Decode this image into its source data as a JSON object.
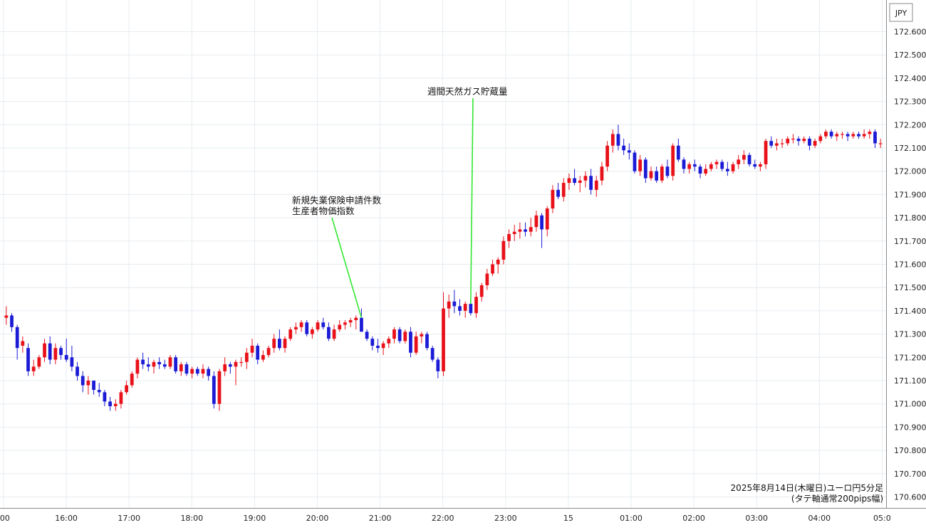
{
  "chart_data": {
    "type": "candlestick",
    "currency_label": "JPY",
    "y_ticks": [
      "172.600",
      "172.500",
      "172.400",
      "172.300",
      "172.200",
      "172.100",
      "172.000",
      "171.900",
      "171.800",
      "171.700",
      "171.600",
      "171.500",
      "171.400",
      "171.300",
      "171.200",
      "171.100",
      "171.000",
      "170.900",
      "170.800",
      "170.700",
      "170.600"
    ],
    "ylim": [
      170.57,
      172.66
    ],
    "x_ticks": [
      ":00",
      "16:00",
      "17:00",
      "18:00",
      "19:00",
      "20:00",
      "21:00",
      "22:00",
      "23:00",
      "15",
      "01:00",
      "02:00",
      "03:00",
      "04:00",
      "05:0"
    ],
    "grid": true,
    "colors": {
      "up": "#e8111a",
      "down": "#1b1bd6",
      "grid": "#e6ecf0",
      "annotation_line": "#33e633",
      "axis_line": "#888888"
    },
    "annotations": [
      {
        "lines": [
          "新規失業保険申請件数",
          "生産者物価指数"
        ],
        "at_candle": 65
      },
      {
        "lines": [
          "週間天然ガス貯蔵量"
        ],
        "at_candle": 85
      }
    ],
    "caption": [
      "2025年8月14日(木曜日)ユーロ円5分足",
      "(タテ軸通常200pips幅)"
    ],
    "candles": [
      [
        171.37,
        171.42,
        171.34,
        171.38
      ],
      [
        171.38,
        171.39,
        171.31,
        171.33
      ],
      [
        171.33,
        171.34,
        171.19,
        171.24
      ],
      [
        171.25,
        171.29,
        171.22,
        171.27
      ],
      [
        171.24,
        171.26,
        171.12,
        171.14
      ],
      [
        171.14,
        171.19,
        171.12,
        171.16
      ],
      [
        171.16,
        171.21,
        171.15,
        171.2
      ],
      [
        171.2,
        171.28,
        171.18,
        171.26
      ],
      [
        171.26,
        171.29,
        171.17,
        171.19
      ],
      [
        171.19,
        171.26,
        171.17,
        171.24
      ],
      [
        171.24,
        171.25,
        171.19,
        171.21
      ],
      [
        171.21,
        171.28,
        171.18,
        171.19
      ],
      [
        171.2,
        171.25,
        171.14,
        171.16
      ],
      [
        171.16,
        171.18,
        171.1,
        171.12
      ],
      [
        171.12,
        171.14,
        171.05,
        171.08
      ],
      [
        171.08,
        171.12,
        171.04,
        171.1
      ],
      [
        171.1,
        171.1,
        171.04,
        171.06
      ],
      [
        171.06,
        171.09,
        171.03,
        171.05
      ],
      [
        171.05,
        171.06,
        170.99,
        171.01
      ],
      [
        171.01,
        171.03,
        170.97,
        170.99
      ],
      [
        170.99,
        171.02,
        170.97,
        171.0
      ],
      [
        171.0,
        171.06,
        170.98,
        171.05
      ],
      [
        171.05,
        171.1,
        171.04,
        171.08
      ],
      [
        171.08,
        171.14,
        171.07,
        171.13
      ],
      [
        171.13,
        171.2,
        171.11,
        171.19
      ],
      [
        171.19,
        171.22,
        171.15,
        171.17
      ],
      [
        171.17,
        171.2,
        171.14,
        171.16
      ],
      [
        171.16,
        171.19,
        171.13,
        171.18
      ],
      [
        171.18,
        171.2,
        171.15,
        171.17
      ],
      [
        171.17,
        171.19,
        171.15,
        171.16
      ],
      [
        171.16,
        171.21,
        171.15,
        171.2
      ],
      [
        171.2,
        171.21,
        171.13,
        171.14
      ],
      [
        171.14,
        171.18,
        171.12,
        171.17
      ],
      [
        171.17,
        171.18,
        171.12,
        171.13
      ],
      [
        171.13,
        171.16,
        171.11,
        171.15
      ],
      [
        171.15,
        171.16,
        171.12,
        171.13
      ],
      [
        171.13,
        171.17,
        171.11,
        171.15
      ],
      [
        171.15,
        171.16,
        171.1,
        171.12
      ],
      [
        171.12,
        171.14,
        170.98,
        171.0
      ],
      [
        171.0,
        171.15,
        170.97,
        171.14
      ],
      [
        171.14,
        171.2,
        171.12,
        171.17
      ],
      [
        171.17,
        171.18,
        171.13,
        171.16
      ],
      [
        171.16,
        171.19,
        171.08,
        171.18
      ],
      [
        171.18,
        171.2,
        171.16,
        171.18
      ],
      [
        171.18,
        171.24,
        171.15,
        171.22
      ],
      [
        171.22,
        171.28,
        171.2,
        171.25
      ],
      [
        171.25,
        171.26,
        171.17,
        171.19
      ],
      [
        171.19,
        171.23,
        171.18,
        171.21
      ],
      [
        171.21,
        171.25,
        171.2,
        171.24
      ],
      [
        171.24,
        171.3,
        171.22,
        171.28
      ],
      [
        171.28,
        171.32,
        171.23,
        171.24
      ],
      [
        171.24,
        171.29,
        171.22,
        171.28
      ],
      [
        171.28,
        171.33,
        171.27,
        171.32
      ],
      [
        171.32,
        171.35,
        171.3,
        171.33
      ],
      [
        171.33,
        171.36,
        171.31,
        171.35
      ],
      [
        171.35,
        171.36,
        171.29,
        171.3
      ],
      [
        171.3,
        171.33,
        171.28,
        171.32
      ],
      [
        171.32,
        171.36,
        171.31,
        171.35
      ],
      [
        171.35,
        171.37,
        171.32,
        171.33
      ],
      [
        171.33,
        171.35,
        171.27,
        171.28
      ],
      [
        171.28,
        171.34,
        171.27,
        171.32
      ],
      [
        171.32,
        171.36,
        171.31,
        171.34
      ],
      [
        171.34,
        171.36,
        171.32,
        171.35
      ],
      [
        171.35,
        171.37,
        171.33,
        171.36
      ],
      [
        171.36,
        171.38,
        171.32,
        171.37
      ],
      [
        171.37,
        171.41,
        171.33,
        171.31
      ],
      [
        171.31,
        171.32,
        171.27,
        171.28
      ],
      [
        171.28,
        171.29,
        171.23,
        171.25
      ],
      [
        171.25,
        171.28,
        171.22,
        171.24
      ],
      [
        171.24,
        171.27,
        171.21,
        171.26
      ],
      [
        171.26,
        171.29,
        171.24,
        171.28
      ],
      [
        171.28,
        171.33,
        171.26,
        171.32
      ],
      [
        171.32,
        171.33,
        171.26,
        171.27
      ],
      [
        171.27,
        171.32,
        171.26,
        171.31
      ],
      [
        171.31,
        171.33,
        171.2,
        171.22
      ],
      [
        171.22,
        171.31,
        171.21,
        171.29
      ],
      [
        171.29,
        171.31,
        171.26,
        171.3
      ],
      [
        171.3,
        171.31,
        171.23,
        171.24
      ],
      [
        171.24,
        171.25,
        171.18,
        171.19
      ],
      [
        171.19,
        171.2,
        171.11,
        171.14
      ],
      [
        171.14,
        171.48,
        171.12,
        171.41
      ],
      [
        171.41,
        171.47,
        171.37,
        171.44
      ],
      [
        171.44,
        171.49,
        171.39,
        171.42
      ],
      [
        171.42,
        171.45,
        171.38,
        171.4
      ],
      [
        171.4,
        171.44,
        171.37,
        171.43
      ],
      [
        171.43,
        171.45,
        171.38,
        171.39
      ],
      [
        171.39,
        171.48,
        171.37,
        171.46
      ],
      [
        171.46,
        171.52,
        171.44,
        171.51
      ],
      [
        171.51,
        171.58,
        171.49,
        171.56
      ],
      [
        171.56,
        171.62,
        171.55,
        171.6
      ],
      [
        171.6,
        171.63,
        171.56,
        171.62
      ],
      [
        171.62,
        171.72,
        171.6,
        171.7
      ],
      [
        171.7,
        171.75,
        171.67,
        171.73
      ],
      [
        171.73,
        171.77,
        171.7,
        171.74
      ],
      [
        171.74,
        171.78,
        171.71,
        171.75
      ],
      [
        171.75,
        171.78,
        171.72,
        171.74
      ],
      [
        171.74,
        171.8,
        171.72,
        171.76
      ],
      [
        171.76,
        171.83,
        171.74,
        171.81
      ],
      [
        171.81,
        171.82,
        171.67,
        171.75
      ],
      [
        171.75,
        171.85,
        171.72,
        171.84
      ],
      [
        171.84,
        171.94,
        171.82,
        171.92
      ],
      [
        171.92,
        171.95,
        171.88,
        171.89
      ],
      [
        171.89,
        171.97,
        171.87,
        171.95
      ],
      [
        171.95,
        171.99,
        171.92,
        171.97
      ],
      [
        171.97,
        172.01,
        171.94,
        171.95
      ],
      [
        171.95,
        171.98,
        171.91,
        171.96
      ],
      [
        171.96,
        172.0,
        171.93,
        171.98
      ],
      [
        171.98,
        172.01,
        171.9,
        171.92
      ],
      [
        171.92,
        171.98,
        171.89,
        171.96
      ],
      [
        171.96,
        172.04,
        171.94,
        172.02
      ],
      [
        172.02,
        172.13,
        172.0,
        172.11
      ],
      [
        172.11,
        172.18,
        172.08,
        172.16
      ],
      [
        172.16,
        172.2,
        172.09,
        172.11
      ],
      [
        172.11,
        172.14,
        172.07,
        172.09
      ],
      [
        172.09,
        172.12,
        172.05,
        172.08
      ],
      [
        172.08,
        172.09,
        171.99,
        172.0
      ],
      [
        172.0,
        172.07,
        171.98,
        172.05
      ],
      [
        172.05,
        172.06,
        171.95,
        171.97
      ],
      [
        171.97,
        172.02,
        171.96,
        172.0
      ],
      [
        172.0,
        172.02,
        171.95,
        171.96
      ],
      [
        171.96,
        172.03,
        171.95,
        172.02
      ],
      [
        172.02,
        172.05,
        171.97,
        171.98
      ],
      [
        171.98,
        172.12,
        171.96,
        172.11
      ],
      [
        172.11,
        172.14,
        172.04,
        172.05
      ],
      [
        172.05,
        172.06,
        171.99,
        172.01
      ],
      [
        172.01,
        172.04,
        171.99,
        172.03
      ],
      [
        172.03,
        172.05,
        172.0,
        172.02
      ],
      [
        172.02,
        172.03,
        171.97,
        171.99
      ],
      [
        171.99,
        172.03,
        171.98,
        172.01
      ],
      [
        172.01,
        172.04,
        172.0,
        172.03
      ],
      [
        172.03,
        172.05,
        172.01,
        172.04
      ],
      [
        172.04,
        172.05,
        172.0,
        172.01
      ],
      [
        172.01,
        172.04,
        171.98,
        172.0
      ],
      [
        172.0,
        172.04,
        171.99,
        172.03
      ],
      [
        172.03,
        172.07,
        172.01,
        172.05
      ],
      [
        172.05,
        172.09,
        172.03,
        172.07
      ],
      [
        172.07,
        172.08,
        172.02,
        172.03
      ],
      [
        172.03,
        172.05,
        172.01,
        172.02
      ],
      [
        172.02,
        172.04,
        172.0,
        172.03
      ],
      [
        172.03,
        172.14,
        172.01,
        172.13
      ],
      [
        172.13,
        172.15,
        172.1,
        172.11
      ],
      [
        172.11,
        172.14,
        172.09,
        172.12
      ],
      [
        172.12,
        172.14,
        172.1,
        172.12
      ],
      [
        172.12,
        172.15,
        172.11,
        172.14
      ],
      [
        172.14,
        172.16,
        172.12,
        172.14
      ],
      [
        172.14,
        172.15,
        172.11,
        172.13
      ],
      [
        172.13,
        172.15,
        172.12,
        172.14
      ],
      [
        172.14,
        172.15,
        172.09,
        172.11
      ],
      [
        172.11,
        172.14,
        172.1,
        172.13
      ],
      [
        172.13,
        172.16,
        172.12,
        172.15
      ],
      [
        172.15,
        172.18,
        172.14,
        172.17
      ],
      [
        172.17,
        172.18,
        172.14,
        172.15
      ],
      [
        172.15,
        172.17,
        172.13,
        172.16
      ],
      [
        172.16,
        172.17,
        172.14,
        172.16
      ],
      [
        172.16,
        172.17,
        172.13,
        172.15
      ],
      [
        172.15,
        172.17,
        172.14,
        172.16
      ],
      [
        172.16,
        172.17,
        172.14,
        172.15
      ],
      [
        172.15,
        172.18,
        172.14,
        172.16
      ],
      [
        172.16,
        172.18,
        172.14,
        172.17
      ],
      [
        172.17,
        172.18,
        172.1,
        172.12
      ],
      [
        172.12,
        172.14,
        172.1,
        172.12
      ]
    ]
  }
}
